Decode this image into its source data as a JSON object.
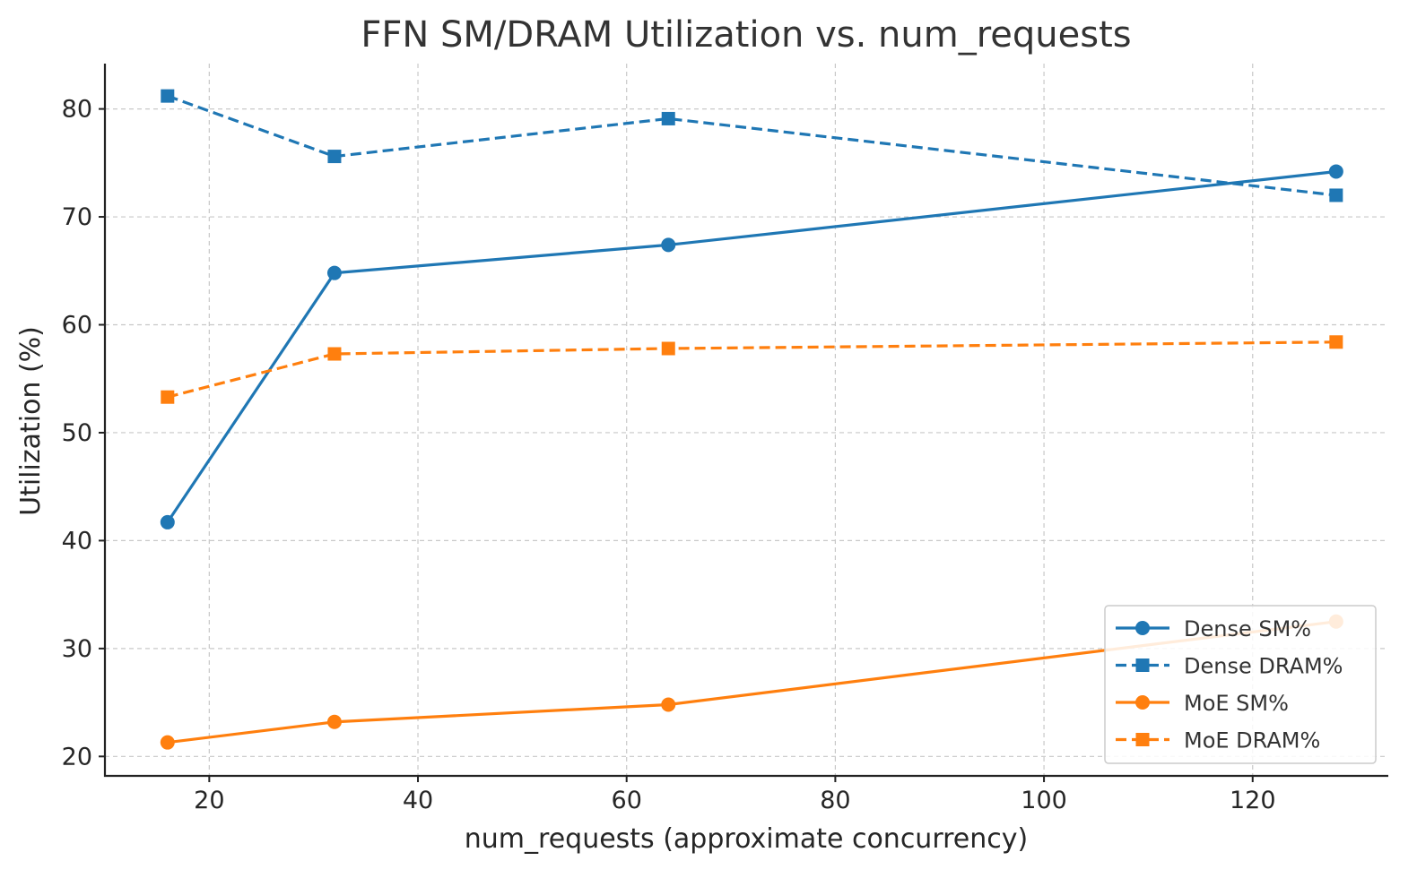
{
  "chart_data": {
    "type": "line",
    "title": "FFN SM/DRAM Utilization vs. num_requests",
    "xlabel": "num_requests (approximate concurrency)",
    "ylabel": "Utilization (%)",
    "x": [
      16,
      32,
      64,
      128
    ],
    "xlim": [
      10,
      133
    ],
    "ylim": [
      18.2,
      84.2
    ],
    "xticks": [
      20,
      40,
      60,
      80,
      100,
      120
    ],
    "yticks": [
      20,
      30,
      40,
      50,
      60,
      70,
      80
    ],
    "grid": true,
    "legend_position": "lower-right",
    "series": [
      {
        "name": "Dense SM%",
        "values": [
          41.7,
          64.8,
          67.4,
          74.2
        ],
        "color": "#1f77b4",
        "marker": "circle",
        "linestyle": "solid"
      },
      {
        "name": "Dense DRAM%",
        "values": [
          81.2,
          75.6,
          79.1,
          72.0
        ],
        "color": "#1f77b4",
        "marker": "square",
        "linestyle": "dashed"
      },
      {
        "name": "MoE SM%",
        "values": [
          21.3,
          23.2,
          24.8,
          32.5
        ],
        "color": "#ff7f0e",
        "marker": "circle",
        "linestyle": "solid"
      },
      {
        "name": "MoE DRAM%",
        "values": [
          53.3,
          57.3,
          57.8,
          58.4
        ],
        "color": "#ff7f0e",
        "marker": "square",
        "linestyle": "dashed"
      }
    ]
  }
}
